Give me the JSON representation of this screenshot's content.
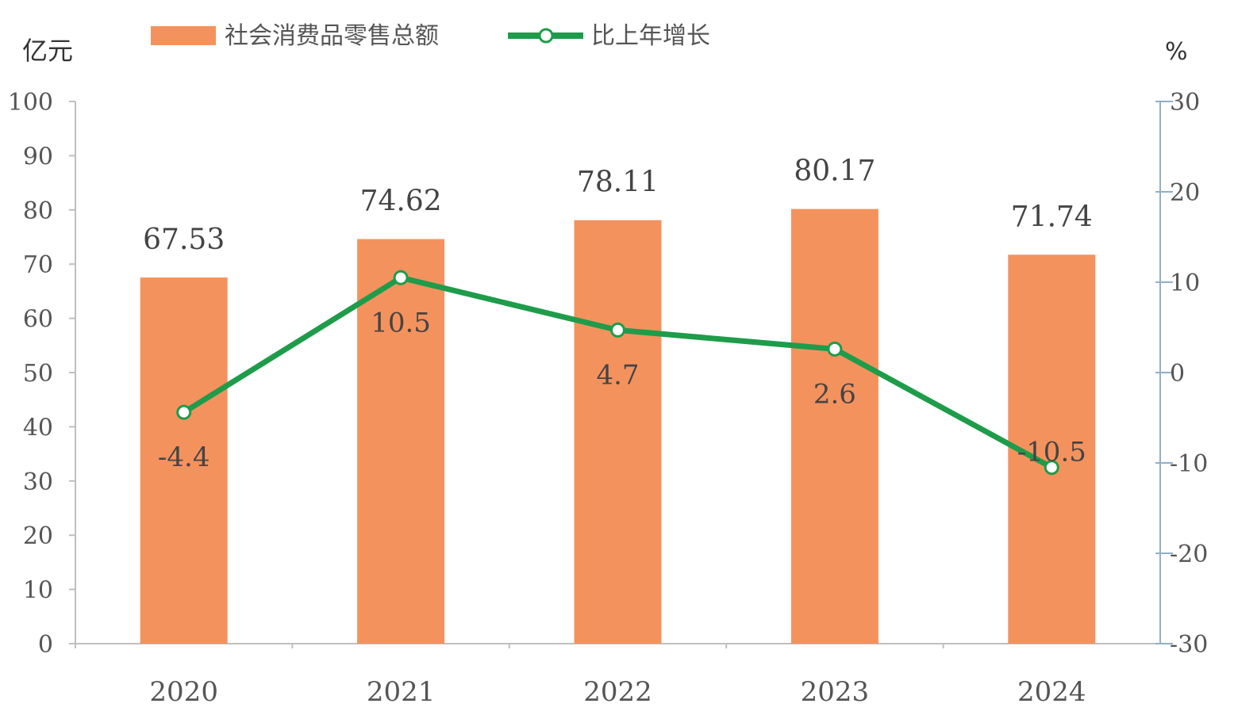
{
  "chart_data": {
    "type": "bar",
    "categories": [
      "2020",
      "2021",
      "2022",
      "2023",
      "2024"
    ],
    "series": [
      {
        "name": "社会消费品零售总额",
        "type": "bar",
        "axis": "left",
        "color": "#F4925E",
        "values": [
          67.53,
          74.62,
          78.11,
          80.17,
          71.74
        ],
        "labels": [
          "67.53",
          "74.62",
          "78.11",
          "80.17",
          "71.74"
        ]
      },
      {
        "name": "比上年增长",
        "type": "line",
        "axis": "right",
        "color": "#1E9C4A",
        "values": [
          -4.4,
          10.5,
          4.7,
          2.6,
          -10.5
        ],
        "labels": [
          "-4.4",
          "10.5",
          "4.7",
          "2.6",
          "-10.5"
        ]
      }
    ],
    "y_left": {
      "unit": "亿元",
      "range": [
        0,
        100
      ],
      "ticks": [
        "0",
        "10",
        "20",
        "30",
        "40",
        "50",
        "60",
        "70",
        "80",
        "90",
        "100"
      ]
    },
    "y_right": {
      "unit": "%",
      "range": [
        -30,
        30
      ],
      "ticks": [
        "-30",
        "-20",
        "-10",
        "0",
        "10",
        "20",
        "30"
      ]
    },
    "grid": false,
    "legend": "top-left"
  }
}
